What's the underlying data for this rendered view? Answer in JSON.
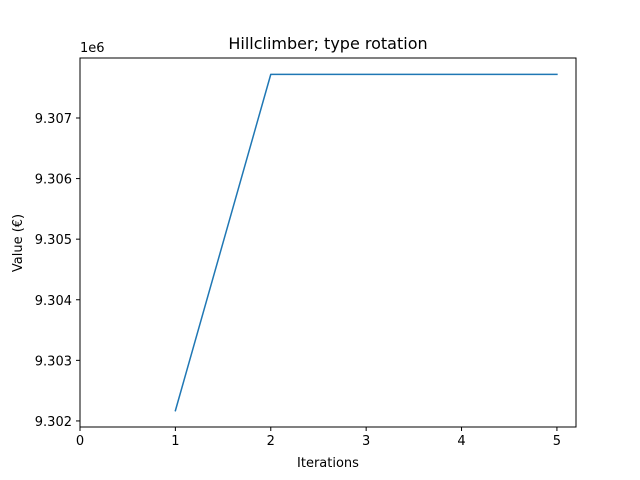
{
  "chart_data": {
    "type": "line",
    "title": "Hillclimber; type rotation",
    "xlabel": "Iterations",
    "ylabel": "Value (€)",
    "y_offset_label": "1e6",
    "x": [
      1,
      2,
      3,
      4,
      5
    ],
    "series": [
      {
        "values": [
          9302170,
          9307720,
          9307720,
          9307720,
          9307720
        ],
        "color": "#1f77b4"
      }
    ],
    "xlim": [
      0,
      5.2
    ],
    "ylim": [
      9301900,
      9307990
    ],
    "x_ticks": [
      {
        "value": 0,
        "label": "0"
      },
      {
        "value": 1,
        "label": "1"
      },
      {
        "value": 2,
        "label": "2"
      },
      {
        "value": 3,
        "label": "3"
      },
      {
        "value": 4,
        "label": "4"
      },
      {
        "value": 5,
        "label": "5"
      }
    ],
    "y_ticks": [
      {
        "value": 9302000,
        "label": "9.302"
      },
      {
        "value": 9303000,
        "label": "9.303"
      },
      {
        "value": 9304000,
        "label": "9.304"
      },
      {
        "value": 9305000,
        "label": "9.305"
      },
      {
        "value": 9306000,
        "label": "9.306"
      },
      {
        "value": 9307000,
        "label": "9.307"
      }
    ],
    "grid": false,
    "legend": "none"
  }
}
